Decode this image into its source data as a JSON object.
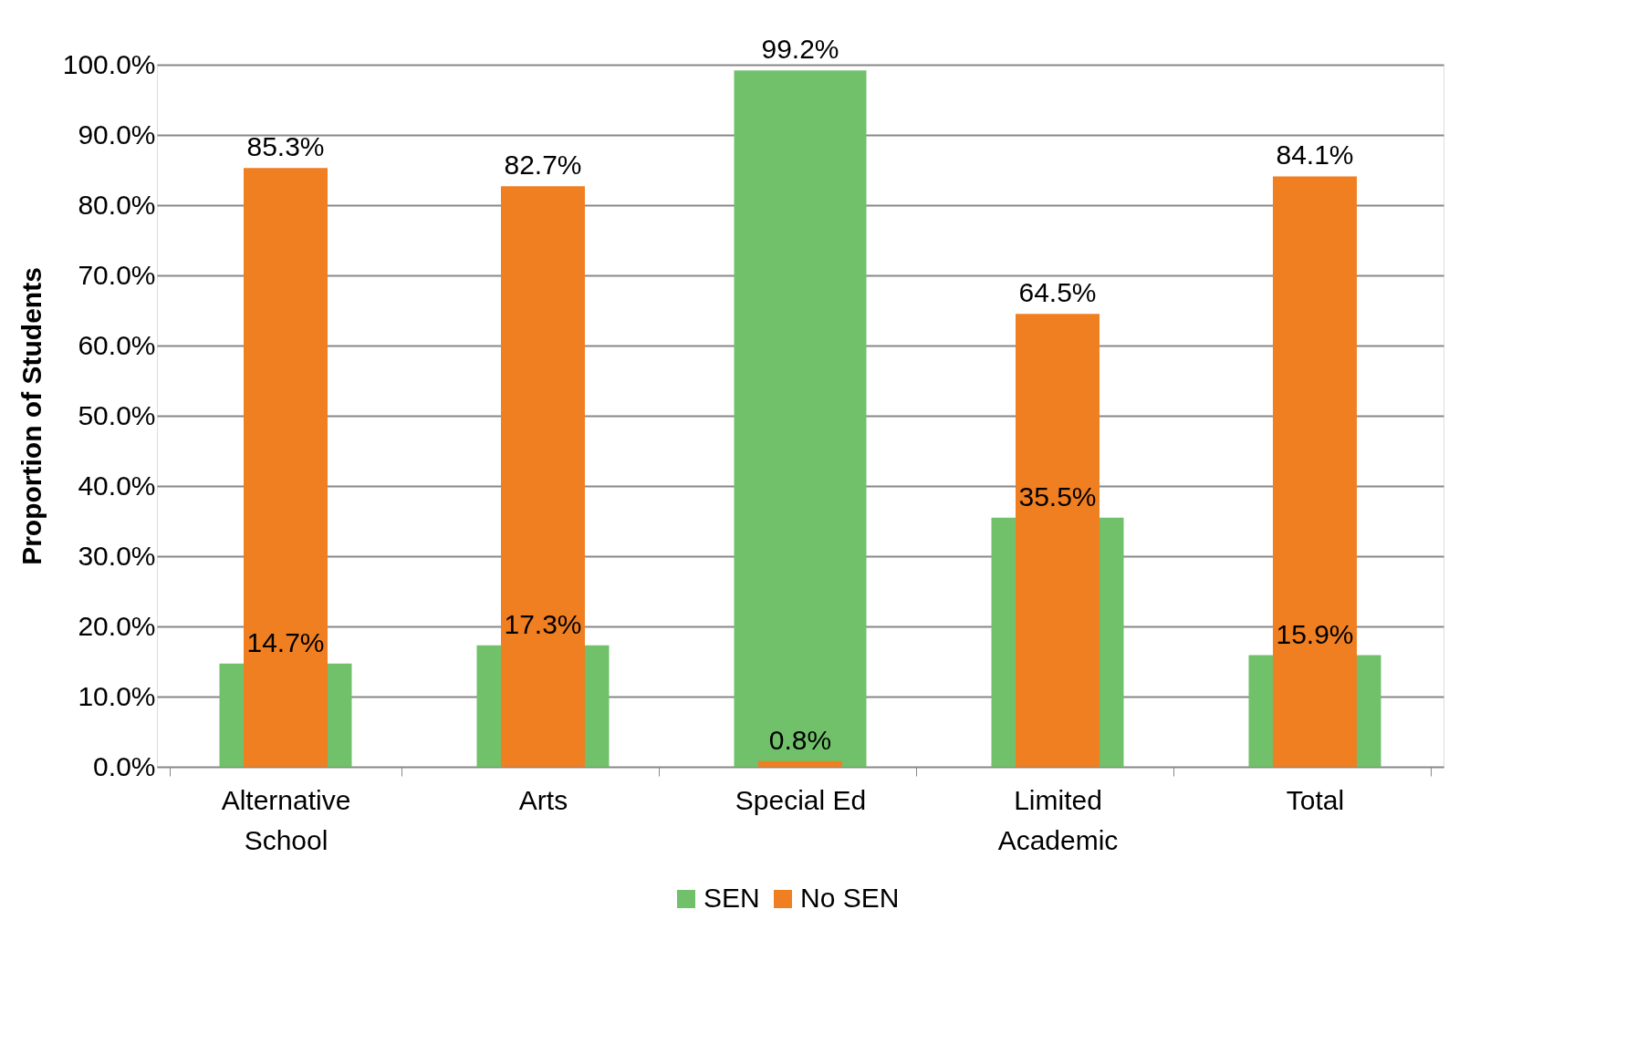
{
  "chart_data": {
    "type": "bar",
    "ylabel": "Proportion of Students",
    "categories": [
      "Alternative School",
      "Arts",
      "Special Ed",
      "Limited Academic",
      "Total"
    ],
    "series": [
      {
        "name": "SEN",
        "color": "#70c16a",
        "values": [
          14.7,
          17.3,
          99.2,
          35.5,
          15.9
        ],
        "value_labels": [
          "14.7%",
          "17.3%",
          "99.2%",
          "35.5%",
          "15.9%"
        ]
      },
      {
        "name": "No SEN",
        "color": "#f07f22",
        "values": [
          85.3,
          82.7,
          0.8,
          64.5,
          84.1
        ],
        "value_labels": [
          "85.3%",
          "82.7%",
          "0.8%",
          "64.5%",
          "84.1%"
        ]
      }
    ],
    "ylim": [
      0,
      100
    ],
    "yticks": [
      {
        "value": 0,
        "label": "0.0%"
      },
      {
        "value": 10,
        "label": "10.0%"
      },
      {
        "value": 20,
        "label": "20.0%"
      },
      {
        "value": 30,
        "label": "30.0%"
      },
      {
        "value": 40,
        "label": "40.0%"
      },
      {
        "value": 50,
        "label": "50.0%"
      },
      {
        "value": 60,
        "label": "60.0%"
      },
      {
        "value": 70,
        "label": "70.0%"
      },
      {
        "value": 80,
        "label": "80.0%"
      },
      {
        "value": 90,
        "label": "90.0%"
      },
      {
        "value": 100,
        "label": "100.0%"
      }
    ],
    "grid": "y",
    "legend": "bottom"
  }
}
